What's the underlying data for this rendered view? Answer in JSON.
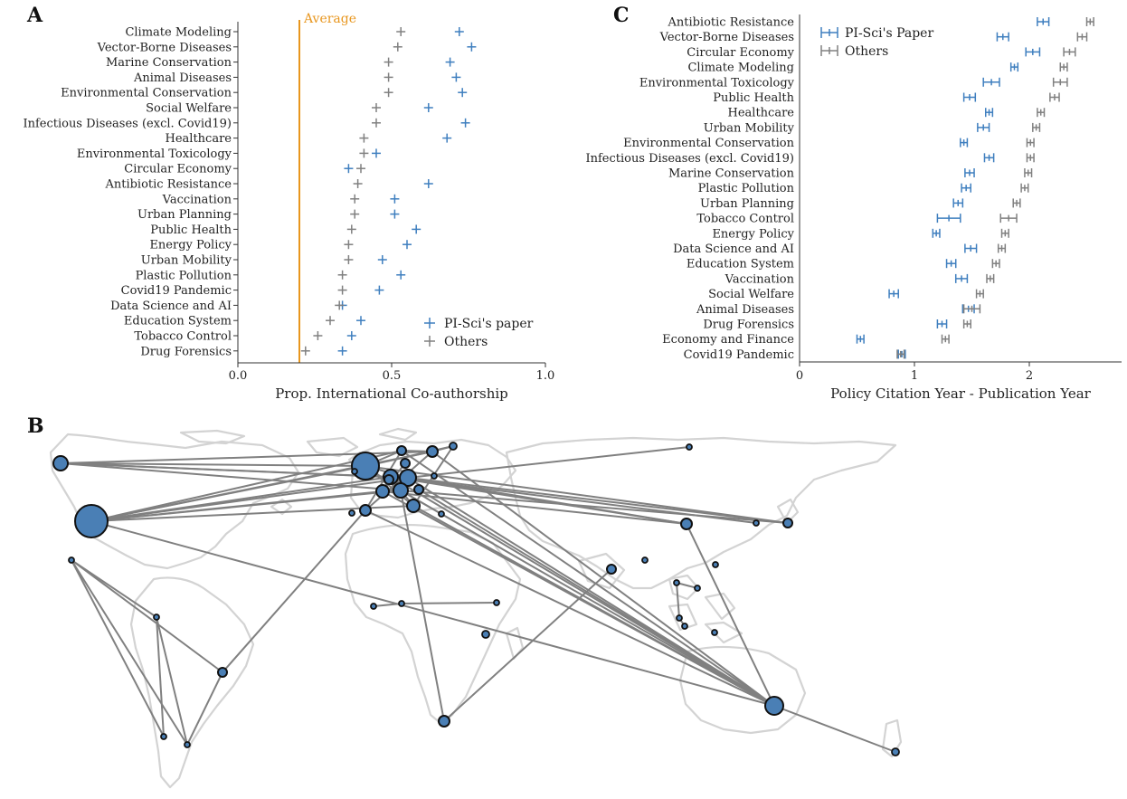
{
  "chart_data": [
    {
      "id": "A",
      "type": "scatter",
      "panel_label": "A",
      "xlabel": "Prop. International Co-authorship",
      "xlim": [
        0,
        1
      ],
      "xticks": [
        0,
        0.5,
        1
      ],
      "xtick_labels": [
        "0.0",
        "0.5",
        "1.0"
      ],
      "reference_line": {
        "label": "Average",
        "x": 0.2,
        "color": "#e8961e"
      },
      "categories": [
        "Climate Modeling",
        "Vector-Borne Diseases",
        "Marine Conservation",
        "Animal Diseases",
        "Environmental Conservation",
        "Social Welfare",
        "Infectious Diseases (excl. Covid19)",
        "Healthcare",
        "Environmental Toxicology",
        "Circular Economy",
        "Antibiotic Resistance",
        "Vaccination",
        "Urban Planning",
        "Public Health",
        "Energy Policy",
        "Urban Mobility",
        "Plastic Pollution",
        "Covid19 Pandemic",
        "Data Science and AI",
        "Education System",
        "Tobacco Control",
        "Drug Forensics"
      ],
      "series": [
        {
          "name": "PI-Sci's paper",
          "color": "#3f7fbf",
          "values": [
            0.72,
            0.76,
            0.69,
            0.71,
            0.73,
            0.62,
            0.74,
            0.68,
            0.45,
            0.36,
            0.62,
            0.51,
            0.51,
            0.58,
            0.55,
            0.47,
            0.53,
            0.46,
            0.34,
            0.4,
            0.37,
            0.34
          ]
        },
        {
          "name": "Others",
          "color": "#808080",
          "values": [
            0.53,
            0.52,
            0.49,
            0.49,
            0.49,
            0.45,
            0.45,
            0.41,
            0.41,
            0.4,
            0.39,
            0.38,
            0.38,
            0.37,
            0.36,
            0.36,
            0.34,
            0.34,
            0.33,
            0.3,
            0.26,
            0.22
          ]
        }
      ],
      "legend": {
        "position": "bottom-right",
        "entries": [
          "PI-Sci's paper",
          "Others"
        ]
      }
    },
    {
      "id": "C",
      "type": "scatter",
      "panel_label": "C",
      "xlabel": "Policy Citation Year - Publication Year",
      "xlim": [
        0,
        2.8
      ],
      "xticks": [
        0,
        1,
        2
      ],
      "xtick_labels": [
        "0",
        "1",
        "2"
      ],
      "categories": [
        "Antibiotic Resistance",
        "Vector-Borne Diseases",
        "Circular Economy",
        "Climate Modeling",
        "Environmental Toxicology",
        "Public Health",
        "Healthcare",
        "Urban Mobility",
        "Environmental Conservation",
        "Infectious Diseases (excl. Covid19)",
        "Marine Conservation",
        "Plastic Pollution",
        "Urban Planning",
        "Tobacco Control",
        "Energy Policy",
        "Data Science and AI",
        "Education System",
        "Vaccination",
        "Social Welfare",
        "Animal Diseases",
        "Drug Forensics",
        "Economy and Finance",
        "Covid19 Pandemic"
      ],
      "series": [
        {
          "name": "PI-Sci's Paper",
          "color": "#3f7fbf",
          "values": [
            2.12,
            1.77,
            2.03,
            1.87,
            1.67,
            1.48,
            1.65,
            1.6,
            1.43,
            1.65,
            1.48,
            1.45,
            1.38,
            1.3,
            1.19,
            1.49,
            1.32,
            1.41,
            0.82,
            1.47,
            1.24,
            0.53,
            0.89
          ],
          "err": [
            0.05,
            0.05,
            0.06,
            0.03,
            0.07,
            0.05,
            0.03,
            0.05,
            0.03,
            0.04,
            0.04,
            0.04,
            0.04,
            0.1,
            0.03,
            0.05,
            0.04,
            0.05,
            0.04,
            0.05,
            0.04,
            0.03,
            0.03
          ]
        },
        {
          "name": "Others",
          "color": "#808080",
          "values": [
            2.53,
            2.46,
            2.35,
            2.3,
            2.27,
            2.22,
            2.1,
            2.06,
            2.01,
            2.01,
            1.99,
            1.96,
            1.89,
            1.82,
            1.79,
            1.76,
            1.71,
            1.66,
            1.57,
            1.5,
            1.46,
            1.27,
            0.88
          ],
          "err": [
            0.03,
            0.04,
            0.05,
            0.03,
            0.06,
            0.04,
            0.03,
            0.03,
            0.03,
            0.03,
            0.03,
            0.03,
            0.03,
            0.07,
            0.03,
            0.03,
            0.03,
            0.03,
            0.03,
            0.07,
            0.03,
            0.03,
            0.03
          ]
        }
      ],
      "legend": {
        "position": "top-left",
        "entries": [
          "PI-Sci's Paper",
          "Others"
        ]
      }
    },
    {
      "id": "B",
      "type": "map",
      "panel_label": "B",
      "description_kind": "collaboration network",
      "node_color": "#4a7fb5",
      "edge_color": "#808080"
    }
  ]
}
